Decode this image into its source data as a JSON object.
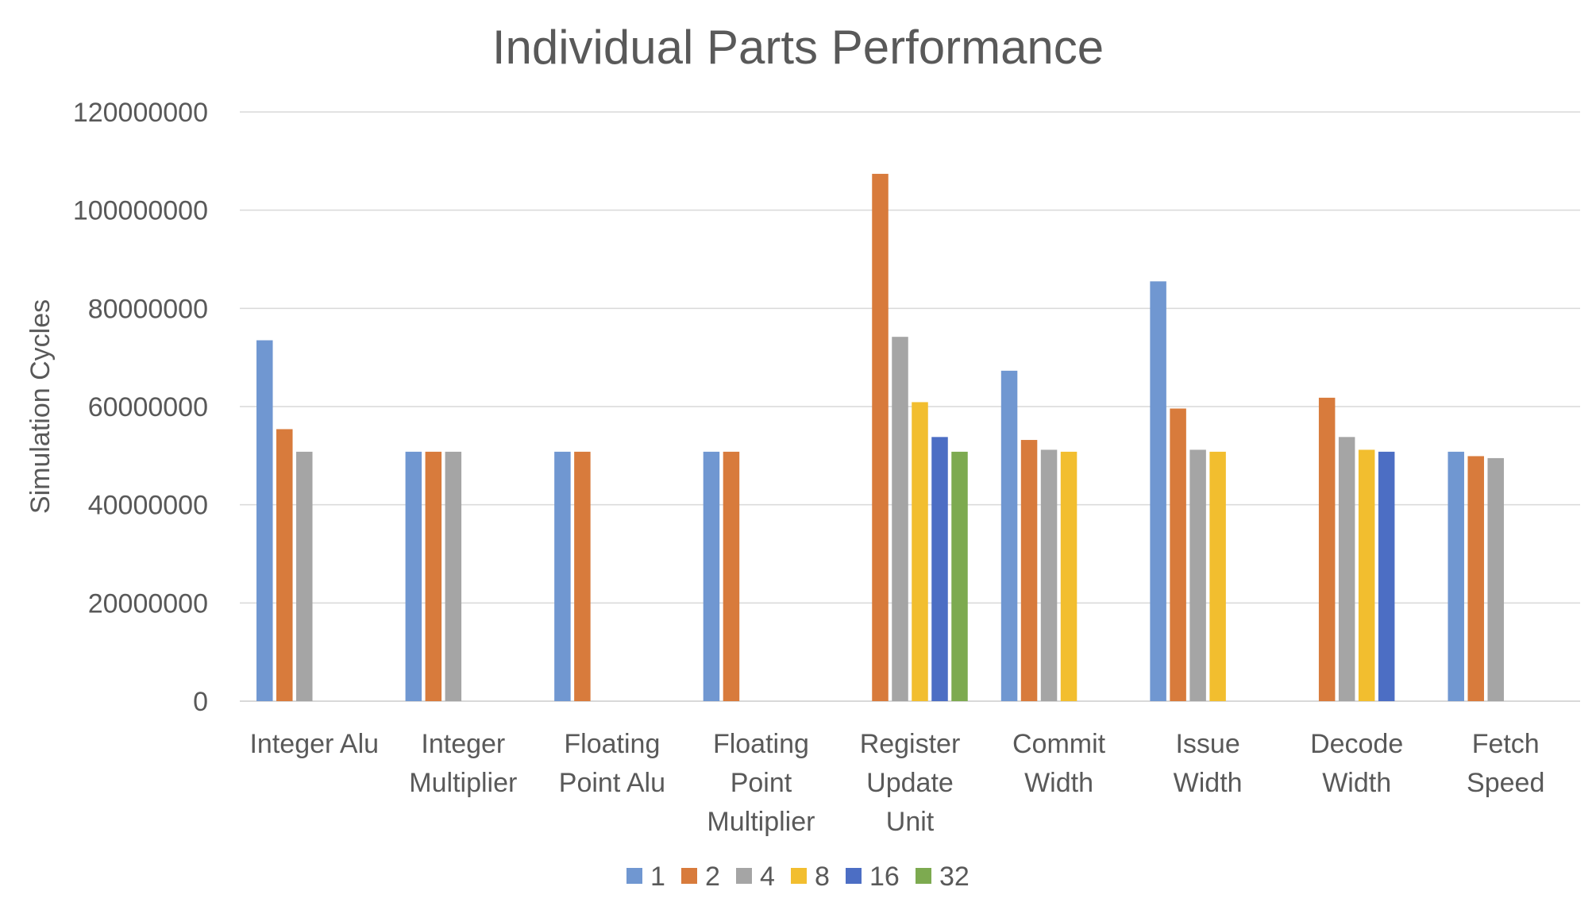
{
  "chart_data": {
    "type": "bar",
    "title": "Individual Parts Performance",
    "xlabel": "",
    "ylabel": "Simulation Cycles",
    "ylim": [
      0,
      120000000
    ],
    "yticks": [
      0,
      20000000,
      40000000,
      60000000,
      80000000,
      100000000,
      120000000
    ],
    "ytick_labels": [
      "0",
      "20000000",
      "40000000",
      "60000000",
      "80000000",
      "100000000",
      "120000000"
    ],
    "grid": true,
    "legend_position": "bottom",
    "categories": [
      [
        "Integer Alu"
      ],
      [
        "Integer",
        "Multiplier"
      ],
      [
        "Floating",
        "Point Alu"
      ],
      [
        "Floating",
        "Point",
        "Multiplier"
      ],
      [
        "Register",
        "Update",
        "Unit"
      ],
      [
        "Commit",
        "Width"
      ],
      [
        "Issue",
        "Width"
      ],
      [
        "Decode",
        "Width"
      ],
      [
        "Fetch",
        "Speed"
      ]
    ],
    "series": [
      {
        "name": "1",
        "color": "#7097D1",
        "values": [
          73500000,
          50800000,
          50800000,
          50800000,
          null,
          67300000,
          85500000,
          null,
          50800000
        ]
      },
      {
        "name": "2",
        "color": "#D87B3C",
        "values": [
          55400000,
          50800000,
          50800000,
          50800000,
          107400000,
          53200000,
          59600000,
          61800000,
          49900000
        ]
      },
      {
        "name": "4",
        "color": "#A5A5A5",
        "values": [
          50800000,
          50800000,
          null,
          null,
          74200000,
          51200000,
          51200000,
          53800000,
          49500000
        ]
      },
      {
        "name": "8",
        "color": "#F2BE2F",
        "values": [
          null,
          null,
          null,
          null,
          60900000,
          50800000,
          50800000,
          51200000,
          null
        ]
      },
      {
        "name": "16",
        "color": "#4C6EC4",
        "values": [
          null,
          null,
          null,
          null,
          53800000,
          null,
          null,
          50800000,
          null
        ]
      },
      {
        "name": "32",
        "color": "#7DAA50",
        "values": [
          null,
          null,
          null,
          null,
          50800000,
          null,
          null,
          null,
          null
        ]
      }
    ]
  }
}
